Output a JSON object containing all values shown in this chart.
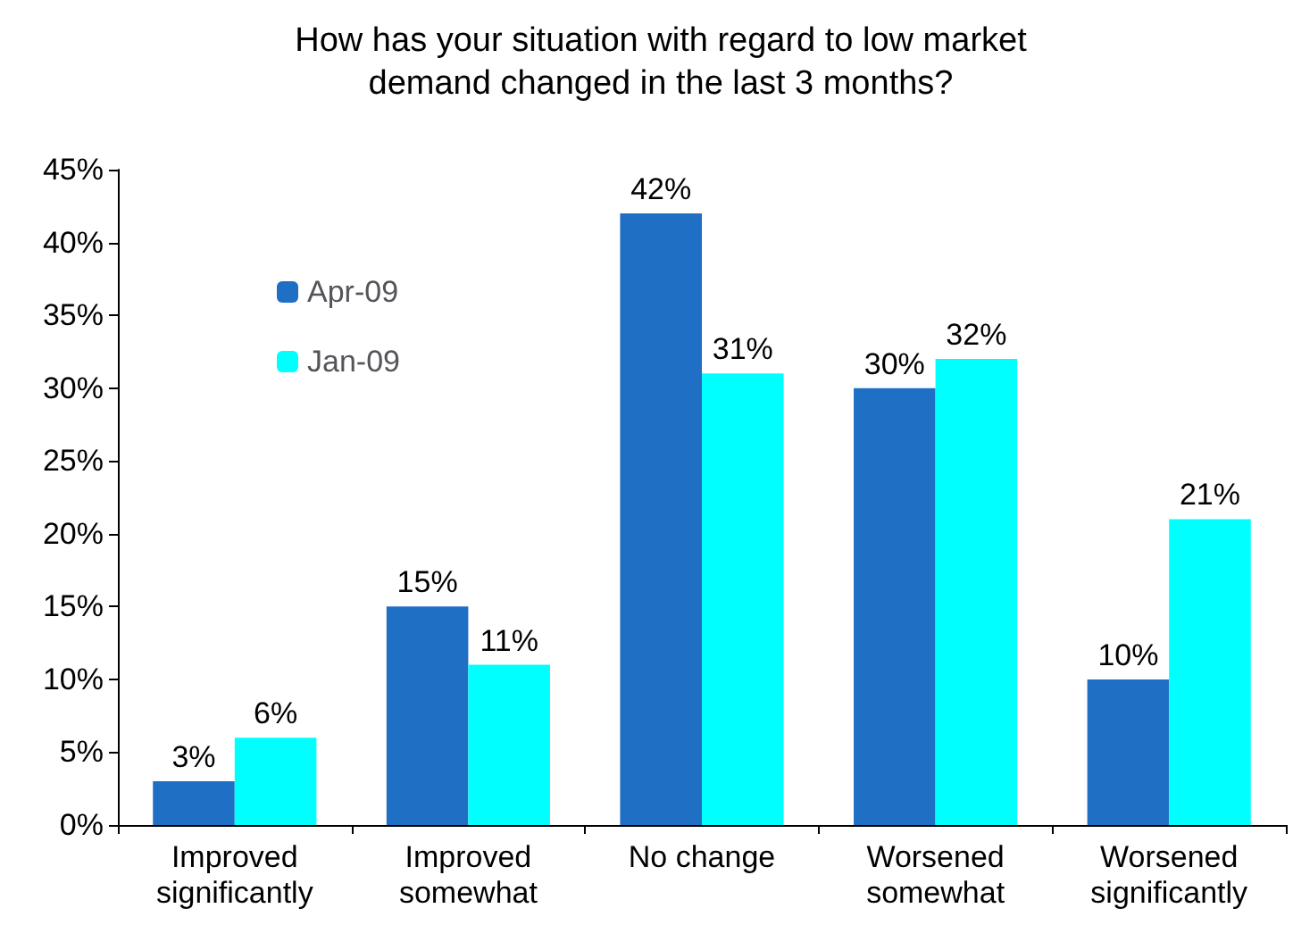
{
  "chart_data": {
    "type": "bar",
    "title": "How has your situation with regard to low market\ndemand changed in the last 3 months?",
    "categories": [
      "Improved\nsignificantly",
      "Improved\nsomewhat",
      "No change",
      "Worsened\nsomewhat",
      "Worsened\nsignificantly"
    ],
    "series": [
      {
        "name": "Apr-09",
        "color": "#1f6fc5",
        "values": [
          3,
          15,
          42,
          30,
          10
        ],
        "value_labels": [
          "3%",
          "15%",
          "42%",
          "30%",
          "10%"
        ]
      },
      {
        "name": "Jan-09",
        "color": "#00ffff",
        "values": [
          6,
          11,
          31,
          32,
          21
        ],
        "value_labels": [
          "6%",
          "11%",
          "31%",
          "32%",
          "21%"
        ]
      }
    ],
    "ylim": [
      0,
      45
    ],
    "yticks": [
      {
        "value": 0,
        "label": "0%"
      },
      {
        "value": 5,
        "label": "5%"
      },
      {
        "value": 10,
        "label": "10%"
      },
      {
        "value": 15,
        "label": "15%"
      },
      {
        "value": 20,
        "label": "20%"
      },
      {
        "value": 25,
        "label": "25%"
      },
      {
        "value": 30,
        "label": "30%"
      },
      {
        "value": 35,
        "label": "35%"
      },
      {
        "value": 40,
        "label": "40%"
      },
      {
        "value": 45,
        "label": "45%"
      }
    ],
    "grid": false,
    "legend": "top left"
  }
}
